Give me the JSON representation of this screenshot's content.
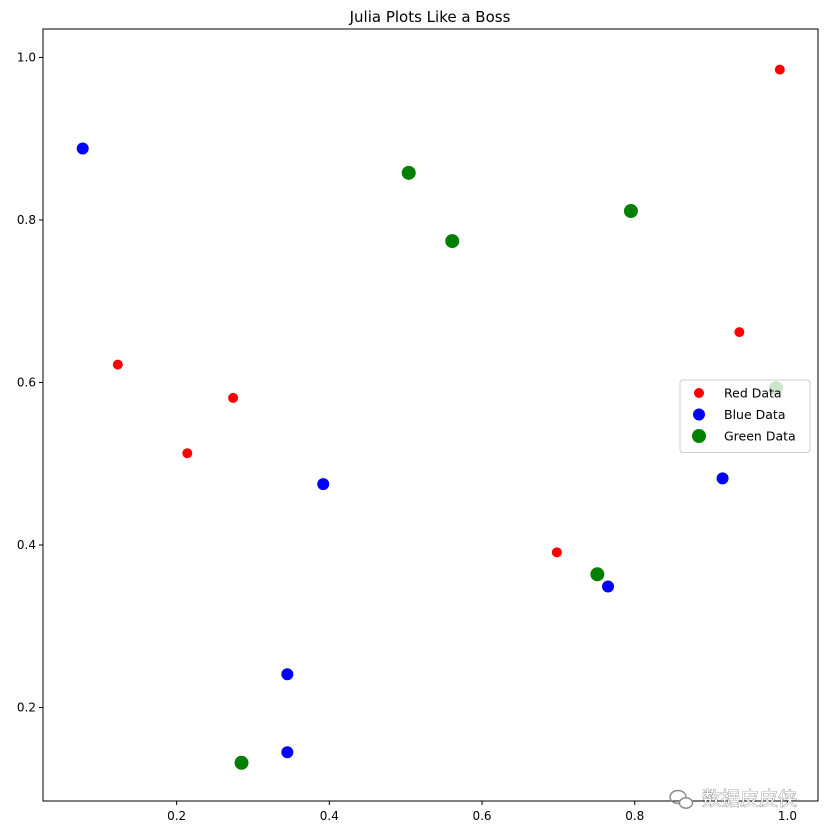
{
  "chart_data": {
    "type": "scatter",
    "title": "Julia Plots Like a Boss",
    "xlabel": "",
    "ylabel": "",
    "xlim": [
      0.025,
      1.04
    ],
    "ylim": [
      0.085,
      1.035
    ],
    "xticks": [
      0.2,
      0.4,
      0.6,
      0.8,
      1.0
    ],
    "xtick_labels": [
      "0.2",
      "0.4",
      "0.6",
      "0.8",
      "1.0"
    ],
    "yticks": [
      0.2,
      0.4,
      0.6,
      0.8,
      1.0
    ],
    "ytick_labels": [
      "0.2",
      "0.4",
      "0.6",
      "0.8",
      "1.0"
    ],
    "grid": false,
    "legend_position": "center-right",
    "series": [
      {
        "name": "Red Data",
        "color": "#ff0000",
        "marker_size": "small",
        "points": [
          {
            "x": 0.123,
            "y": 0.622
          },
          {
            "x": 0.214,
            "y": 0.513
          },
          {
            "x": 0.274,
            "y": 0.581
          },
          {
            "x": 0.698,
            "y": 0.391
          },
          {
            "x": 0.937,
            "y": 0.662
          },
          {
            "x": 0.99,
            "y": 0.985
          }
        ]
      },
      {
        "name": "Blue Data",
        "color": "#0000ff",
        "marker_size": "medium",
        "points": [
          {
            "x": 0.077,
            "y": 0.888
          },
          {
            "x": 0.345,
            "y": 0.241
          },
          {
            "x": 0.345,
            "y": 0.145
          },
          {
            "x": 0.392,
            "y": 0.475
          },
          {
            "x": 0.765,
            "y": 0.349
          },
          {
            "x": 0.915,
            "y": 0.482
          }
        ]
      },
      {
        "name": "Green Data",
        "color": "#008000",
        "marker_size": "large",
        "points": [
          {
            "x": 0.285,
            "y": 0.132
          },
          {
            "x": 0.504,
            "y": 0.858
          },
          {
            "x": 0.561,
            "y": 0.774
          },
          {
            "x": 0.751,
            "y": 0.364
          },
          {
            "x": 0.795,
            "y": 0.811
          },
          {
            "x": 0.985,
            "y": 0.593
          }
        ]
      }
    ]
  },
  "watermark": {
    "text": "数据皮皮侠",
    "icon": "wechat-icon"
  }
}
